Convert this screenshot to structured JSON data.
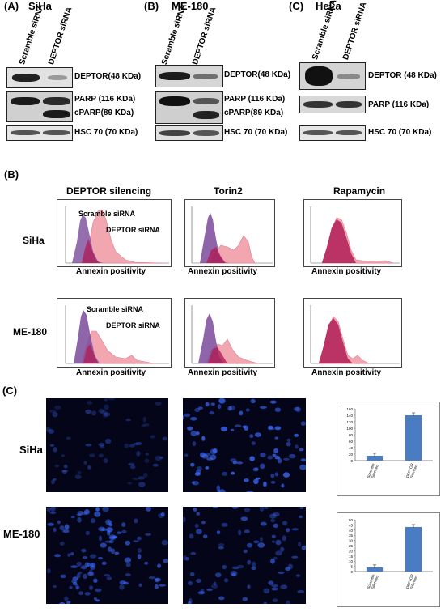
{
  "panelA": {
    "label": "(A)",
    "blots": [
      {
        "cell": "SiHa",
        "letter": "(A)",
        "lanes": [
          "Scramble siRNA",
          "DEPTOR siRNA"
        ],
        "labels": [
          "DEPTOR(48 KDa)",
          "PARP (116 KDa)",
          "cPARP(89 KDa)",
          "HSC 70 (70 KDa)"
        ]
      },
      {
        "cell": "ME-180",
        "letter": "(B)",
        "lanes": [
          "Scramble siRNA",
          "DEPTOR siRNA"
        ],
        "labels": [
          "DEPTOR(48 KDa)",
          "PARP (116 KDa)",
          "cPARP(89 KDa)",
          "HSC 70 (70 KDa)"
        ]
      },
      {
        "cell": "HeLa",
        "letter": "(C)",
        "lanes": [
          "Scramble siRNA",
          "DEPTOR siRNA"
        ],
        "labels": [
          "DEPTOR (48 KDa)",
          "PARP (116 KDa)",
          "HSC 70 (70 KDa)"
        ]
      }
    ]
  },
  "panelB": {
    "label": "(B)",
    "columns": [
      "DEPTOR silencing",
      "Torin2",
      "Rapamycin"
    ],
    "rows": [
      "SiHa",
      "ME-180"
    ],
    "xlabel": "Annexin positivity",
    "legend": {
      "scramble": "Scramble siRNA",
      "deptor": "DEPTOR siRNA"
    },
    "colors": {
      "purple": "#7b4a9a",
      "pink": "#f2a6b0",
      "overlap": "#b01e57"
    }
  },
  "panelC": {
    "label": "(C)",
    "rows": [
      "SiHa",
      "ME-180"
    ],
    "charts": [
      {
        "type": "bar",
        "categories": [
          "Scramble Silenced",
          "DEPTOR Silenced"
        ],
        "values": [
          15,
          140
        ],
        "ylim": [
          0,
          160
        ],
        "yticks": [
          "0",
          "20",
          "40",
          "60",
          "80",
          "100",
          "120",
          "140",
          "160"
        ]
      },
      {
        "type": "bar",
        "categories": [
          "Scramble Silenced",
          "DEPTOR Silenced"
        ],
        "values": [
          4,
          43
        ],
        "ylim": [
          0,
          50
        ],
        "yticks": [
          "0",
          "5",
          "10",
          "15",
          "20",
          "25",
          "30",
          "35",
          "40",
          "45",
          "50"
        ]
      }
    ],
    "bar_color": "#4a7cc4"
  }
}
